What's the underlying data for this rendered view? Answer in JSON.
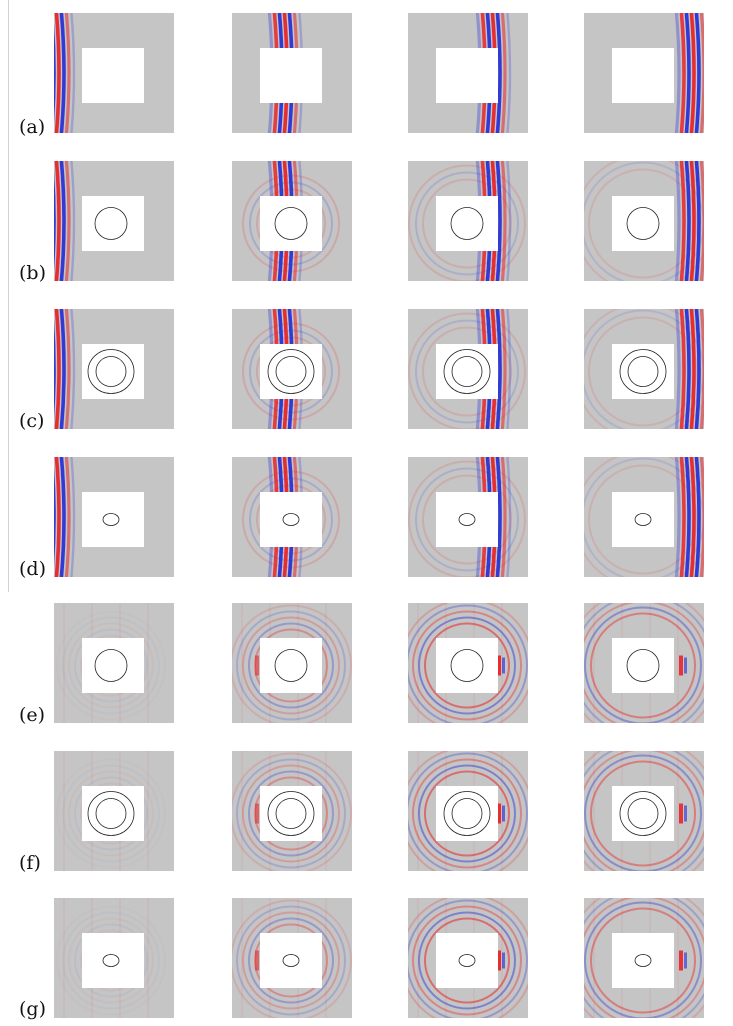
{
  "figure": {
    "rows": [
      {
        "label": "(a)",
        "obstacle": "none",
        "wave": "incident"
      },
      {
        "label": "(b)",
        "obstacle": "circle",
        "wave": "incident"
      },
      {
        "label": "(c)",
        "obstacle": "double-circle",
        "wave": "incident"
      },
      {
        "label": "(d)",
        "obstacle": "small-ellipse",
        "wave": "incident"
      },
      {
        "label": "(e)",
        "obstacle": "circle",
        "wave": "scattered"
      },
      {
        "label": "(f)",
        "obstacle": "double-circle",
        "wave": "scattered"
      },
      {
        "label": "(g)",
        "obstacle": "small-ellipse",
        "wave": "scattered"
      }
    ],
    "time_steps": 4,
    "colors": {
      "background": "#c5c5c5",
      "positive": "#e8252a",
      "negative": "#2a33d6",
      "hole": "#ffffff"
    }
  }
}
